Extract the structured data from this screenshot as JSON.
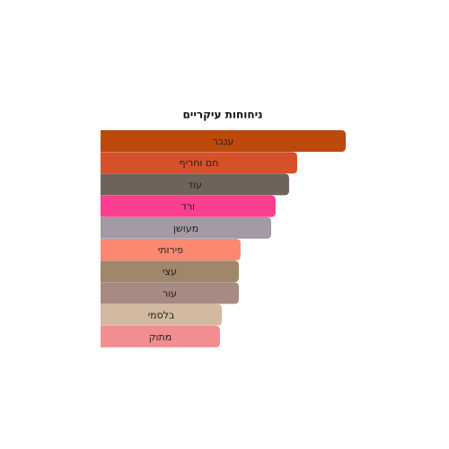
{
  "chart_data": {
    "type": "bar",
    "orientation": "horizontal",
    "title": "ניחוחות עיקריים",
    "categories": [
      "ענבר",
      "חם וחריף",
      "עוד",
      "ורד",
      "מעושן",
      "פירותי",
      "עצי",
      "עור",
      "בלסמי",
      "מתוק"
    ],
    "values": [
      100,
      80.2,
      76.9,
      71.4,
      69.6,
      57.1,
      56.4,
      56.4,
      49.5,
      48.7
    ],
    "colors": [
      "#bc4a0b",
      "#d6502a",
      "#6e6259",
      "#fb3e8f",
      "#a39aa6",
      "#fc8870",
      "#a0866a",
      "#a78a82",
      "#d2b9a0",
      "#f28e91"
    ],
    "xlim": [
      0,
      100
    ]
  }
}
